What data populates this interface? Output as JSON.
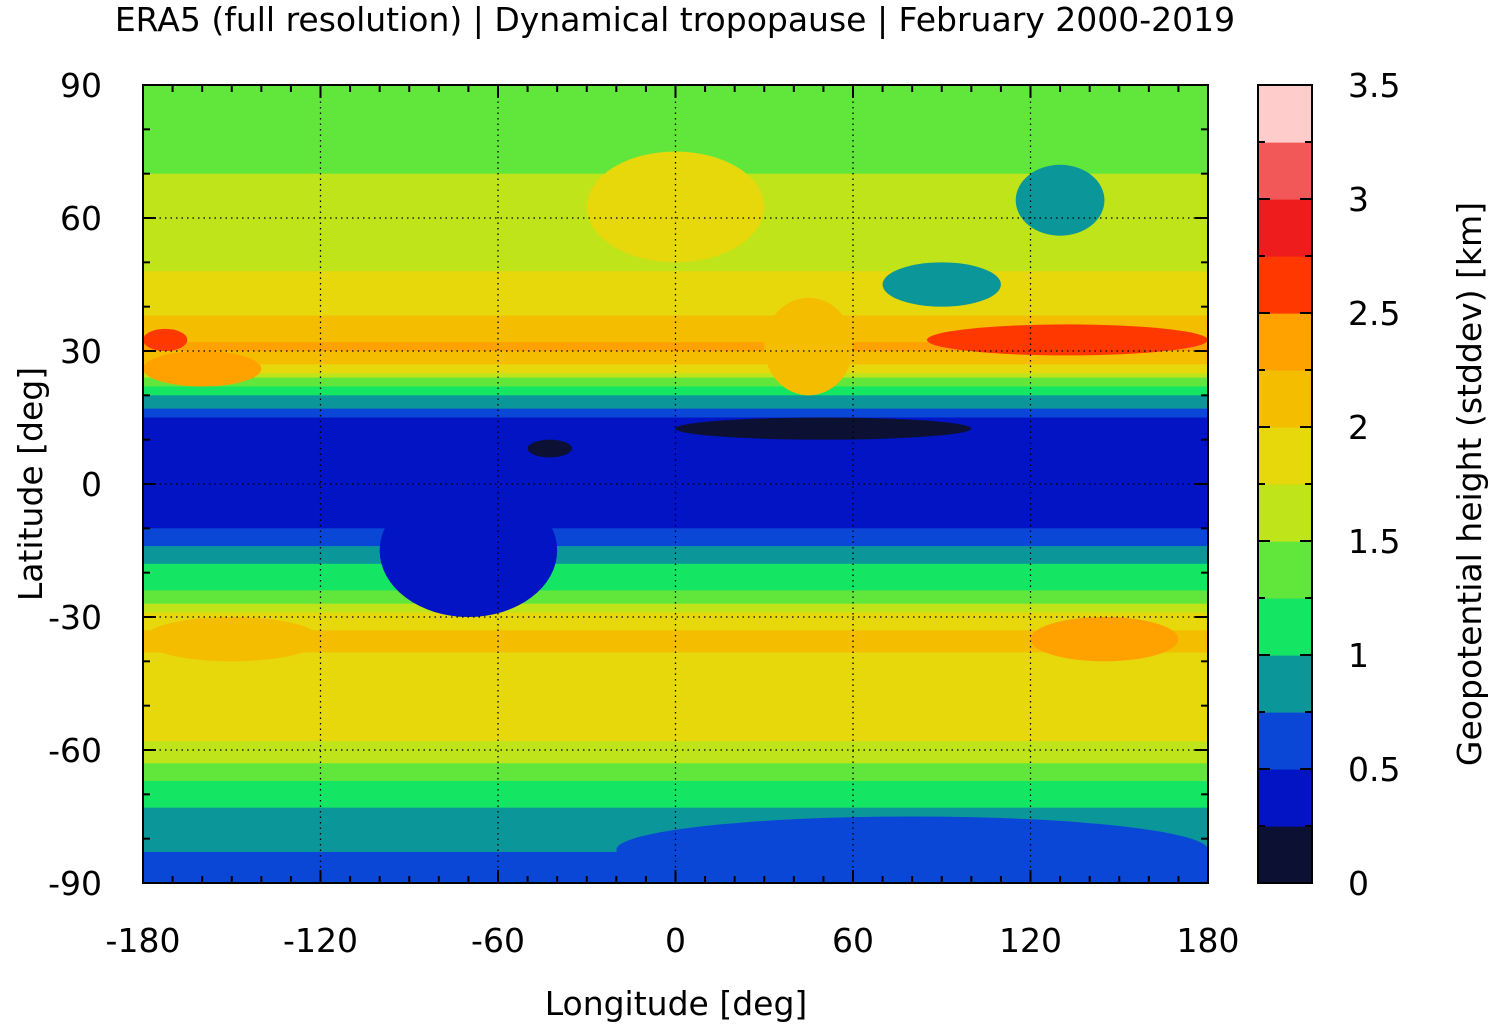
{
  "chart_data": {
    "type": "heatmap",
    "title": "ERA5 (full resolution) | Dynamical tropopause | February 2000-2019",
    "xlabel": "Longitude [deg]",
    "ylabel": "Latitude [deg]",
    "colorbar_label": "Geopotential height (stddev) [km]",
    "xlim": [
      -180,
      180
    ],
    "ylim": [
      -90,
      90
    ],
    "xticks": [
      -180,
      -120,
      -60,
      0,
      60,
      120,
      180
    ],
    "yticks": [
      90,
      60,
      30,
      0,
      -30,
      -60,
      -90
    ],
    "grid": true,
    "colorbar": {
      "range": [
        0,
        3.5
      ],
      "ticks": [
        0,
        0.5,
        1,
        1.5,
        2,
        2.5,
        3,
        3.5
      ],
      "bins": [
        {
          "from": 0.0,
          "to": 0.25,
          "color": "#0c1033"
        },
        {
          "from": 0.25,
          "to": 0.5,
          "color": "#0214c4"
        },
        {
          "from": 0.5,
          "to": 0.75,
          "color": "#0a47d6"
        },
        {
          "from": 0.75,
          "to": 1.0,
          "color": "#0b969a"
        },
        {
          "from": 1.0,
          "to": 1.25,
          "color": "#14e562"
        },
        {
          "from": 1.25,
          "to": 1.5,
          "color": "#61e63c"
        },
        {
          "from": 1.5,
          "to": 1.75,
          "color": "#bfe41a"
        },
        {
          "from": 1.75,
          "to": 2.0,
          "color": "#e6d80a"
        },
        {
          "from": 2.0,
          "to": 2.25,
          "color": "#f4bd00"
        },
        {
          "from": 2.25,
          "to": 2.5,
          "color": "#ffa200"
        },
        {
          "from": 2.5,
          "to": 2.75,
          "color": "#ff3800"
        },
        {
          "from": 2.75,
          "to": 3.0,
          "color": "#ee1c1c"
        },
        {
          "from": 3.0,
          "to": 3.25,
          "color": "#f25858"
        },
        {
          "from": 3.25,
          "to": 3.5,
          "color": "#ffcccc"
        }
      ]
    },
    "zonal_profile": {
      "latitudes": [
        90,
        80,
        70,
        60,
        50,
        40,
        33,
        30,
        25,
        20,
        15,
        10,
        0,
        -10,
        -15,
        -20,
        -25,
        -30,
        -35,
        -40,
        -50,
        -60,
        -65,
        -70,
        -75,
        -80,
        -85,
        -90
      ],
      "values": [
        1.3,
        1.35,
        1.5,
        1.6,
        1.7,
        1.9,
        2.2,
        2.3,
        1.7,
        1.0,
        0.5,
        0.4,
        0.4,
        0.5,
        0.8,
        1.1,
        1.3,
        1.8,
        2.1,
        1.95,
        1.9,
        1.7,
        1.35,
        1.1,
        0.9,
        0.85,
        0.7,
        0.6
      ]
    },
    "features": [
      {
        "lon0": -180,
        "lon1": -165,
        "lat0": 30,
        "lat1": 35,
        "value": 2.55
      },
      {
        "lon0": 85,
        "lon1": 180,
        "lat0": 29,
        "lat1": 36,
        "value": 2.6
      },
      {
        "lon0": -180,
        "lon1": -140,
        "lat0": 22,
        "lat1": 30,
        "value": 2.3
      },
      {
        "lon0": 0,
        "lon1": 100,
        "lat0": 10,
        "lat1": 15,
        "value": 0.15
      },
      {
        "lon0": -50,
        "lon1": -35,
        "lat0": 6,
        "lat1": 10,
        "value": 0.2
      },
      {
        "lon0": 30,
        "lon1": 60,
        "lat0": 20,
        "lat1": 42,
        "value": 2.1
      },
      {
        "lon0": 120,
        "lon1": 170,
        "lat0": -40,
        "lat1": -30,
        "value": 2.3
      },
      {
        "lon0": -180,
        "lon1": -120,
        "lat0": -40,
        "lat1": -30,
        "value": 2.2
      },
      {
        "lon0": 70,
        "lon1": 110,
        "lat0": 40,
        "lat1": 50,
        "value": 0.9
      },
      {
        "lon0": 115,
        "lon1": 145,
        "lat0": 56,
        "lat1": 72,
        "value": 0.9
      },
      {
        "lon0": -30,
        "lon1": 30,
        "lat0": 50,
        "lat1": 75,
        "value": 1.8
      },
      {
        "lon0": -100,
        "lon1": -40,
        "lat0": -30,
        "lat1": 0,
        "value": 0.4
      },
      {
        "lon0": -20,
        "lon1": 180,
        "lat0": -90,
        "lat1": -75,
        "value": 0.6
      }
    ]
  }
}
